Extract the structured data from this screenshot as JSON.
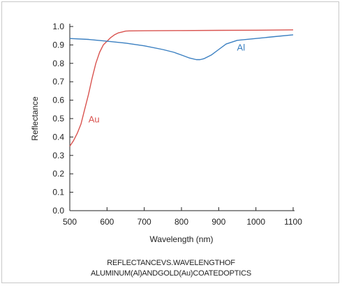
{
  "chart_data": {
    "type": "line",
    "xlabel": "Wavelength (nm)",
    "ylabel": "Reflectance",
    "xlim": [
      500,
      1100
    ],
    "ylim": [
      0.0,
      1.0
    ],
    "xticks": [
      "500",
      "600",
      "700",
      "800",
      "900",
      "1000",
      "1100"
    ],
    "yticks": [
      "0.0",
      "0.1",
      "0.2",
      "0.3",
      "0.4",
      "0.5",
      "0.6",
      "0.7",
      "0.8",
      "0.9",
      "1.0"
    ],
    "grid": false,
    "series": [
      {
        "name": "Au",
        "color": "#d9534f",
        "x": [
          500,
          510,
          520,
          530,
          540,
          550,
          560,
          570,
          580,
          590,
          600,
          610,
          620,
          630,
          640,
          650,
          660,
          700,
          800,
          900,
          1000,
          1100
        ],
        "y": [
          0.35,
          0.38,
          0.42,
          0.47,
          0.55,
          0.63,
          0.72,
          0.8,
          0.86,
          0.9,
          0.92,
          0.94,
          0.955,
          0.965,
          0.97,
          0.975,
          0.976,
          0.977,
          0.978,
          0.979,
          0.98,
          0.982
        ]
      },
      {
        "name": "Al",
        "color": "#3a7fc1",
        "x": [
          500,
          550,
          600,
          650,
          700,
          750,
          780,
          800,
          820,
          840,
          850,
          860,
          880,
          900,
          920,
          950,
          1000,
          1050,
          1100
        ],
        "y": [
          0.935,
          0.93,
          0.92,
          0.91,
          0.895,
          0.875,
          0.86,
          0.845,
          0.83,
          0.82,
          0.82,
          0.825,
          0.845,
          0.875,
          0.905,
          0.925,
          0.935,
          0.945,
          0.955
        ]
      }
    ]
  },
  "caption": {
    "line1": "REFLECTANCEVS.WAVELENGTHOF",
    "line2": "ALUMINUM(Al)ANDGOLD(Au)COATEDOPTICS"
  }
}
